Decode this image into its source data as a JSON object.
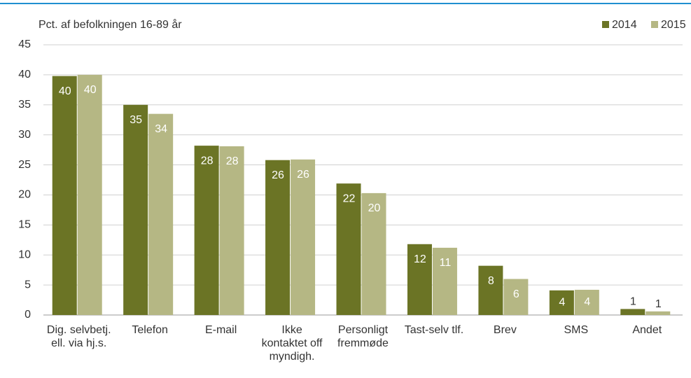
{
  "chart_data": {
    "type": "bar",
    "title": "Pct. af befolkningen 16-89 år",
    "categories": [
      "Dig. selvbetj.\nell. via hj.s.",
      "Telefon",
      "E-mail",
      "Ikke\nkontaktet off\nmyndigh.",
      "Personligt\nfremmøde",
      "Tast-selv tlf.",
      "Brev",
      "SMS",
      "Andet"
    ],
    "series": [
      {
        "name": "2014",
        "color": "#6b7425",
        "values": [
          39.8,
          35,
          28.2,
          25.8,
          21.9,
          11.8,
          8.2,
          4.1,
          1.0
        ],
        "value_labels": [
          "40",
          "35",
          "28",
          "26",
          "22",
          "12",
          "8",
          "4",
          "1"
        ]
      },
      {
        "name": "2015",
        "color": "#b5b784",
        "values": [
          40.0,
          33.5,
          28.1,
          25.9,
          20.3,
          11.2,
          6.0,
          4.2,
          0.6
        ],
        "value_labels": [
          "40",
          "34",
          "28",
          "26",
          "20",
          "11",
          "6",
          "4",
          "1"
        ]
      }
    ],
    "ylim": [
      0,
      45
    ],
    "yticks": [
      0,
      5,
      10,
      15,
      20,
      25,
      30,
      35,
      40,
      45
    ],
    "grid": true,
    "legend": "top-right"
  }
}
